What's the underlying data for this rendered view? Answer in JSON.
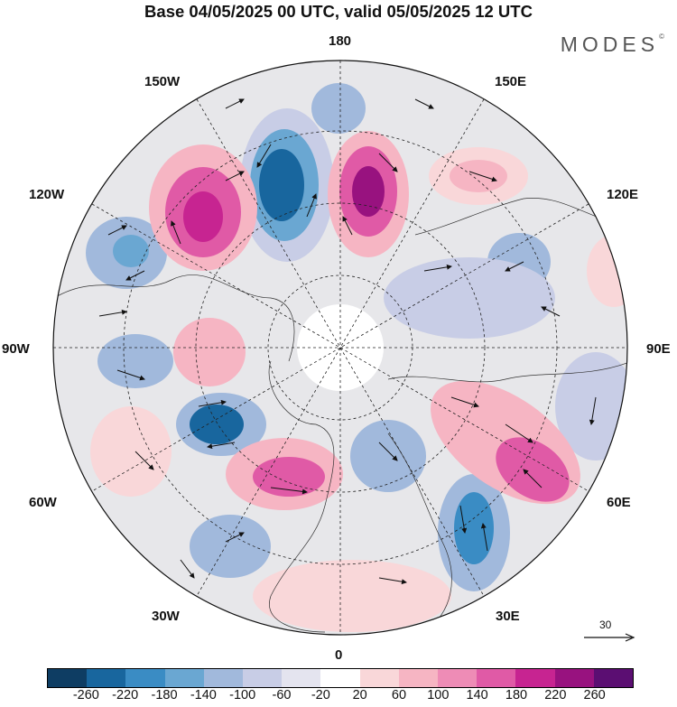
{
  "title": "Base 04/05/2025 00 UTC, valid 05/05/2025 12 UTC",
  "brand": "MODES",
  "brand_mark": "©",
  "longitude_labels": {
    "top": "180",
    "top_left": "150W",
    "top_right": "150E",
    "upper_left": "120W",
    "upper_right": "120E",
    "left": "90W",
    "right": "90E",
    "lower_left": "60W",
    "lower_right": "60E",
    "bottom_left": "30W",
    "bottom_right": "30E",
    "bottom": "0"
  },
  "vector_reference": {
    "label": "30"
  },
  "colorbar": {
    "colors": [
      "#0e3d63",
      "#18669e",
      "#3a8cc4",
      "#6aa7d2",
      "#a1b9dc",
      "#c8cde6",
      "#e4e4ef",
      "#ffffff",
      "#f9d7d9",
      "#f6b5c3",
      "#ee8cb6",
      "#e05aa6",
      "#c72491",
      "#98127f",
      "#5b0e72"
    ],
    "ticks": [
      "-260",
      "-220",
      "-180",
      "-140",
      "-100",
      "-60",
      "-20",
      "20",
      "60",
      "100",
      "140",
      "180",
      "220",
      "260"
    ]
  }
}
